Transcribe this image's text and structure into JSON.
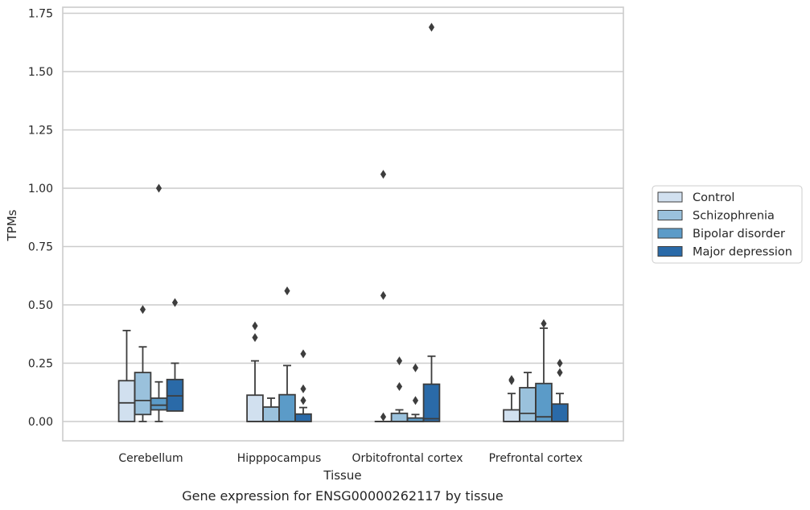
{
  "chart_data": {
    "type": "box",
    "title": "",
    "caption": "Gene expression for ENSG00000262117 by tissue",
    "xlabel": "Tissue",
    "ylabel": "TPMs",
    "ylim": [
      -0.08,
      1.78
    ],
    "yticks": [
      0.0,
      0.25,
      0.5,
      0.75,
      1.0,
      1.25,
      1.5,
      1.75
    ],
    "ytick_labels": [
      "0.00",
      "0.25",
      "0.50",
      "0.75",
      "1.00",
      "1.25",
      "1.50",
      "1.75"
    ],
    "grid": "horizontal",
    "legend_position": "right",
    "categories": [
      "Cerebellum",
      "Hipppocampus",
      "Orbitofrontal cortex",
      "Prefrontal cortex"
    ],
    "series": [
      {
        "name": "Control",
        "color": "#d1e0ef",
        "boxes": [
          {
            "min": 0.0,
            "q1": 0.0,
            "median": 0.08,
            "q3": 0.175,
            "max": 0.39,
            "outliers": []
          },
          {
            "min": 0.0,
            "q1": 0.0,
            "median": 0.0,
            "q3": 0.113,
            "max": 0.26,
            "outliers": [
              0.36,
              0.41
            ]
          },
          {
            "min": 0.0,
            "q1": 0.0,
            "median": 0.0,
            "q3": 0.0,
            "max": 0.0,
            "outliers": [
              0.02,
              0.54,
              1.06
            ]
          },
          {
            "min": 0.0,
            "q1": 0.0,
            "median": 0.0,
            "q3": 0.05,
            "max": 0.12,
            "outliers": [
              0.175,
              0.18
            ]
          }
        ]
      },
      {
        "name": "Schizophrenia",
        "color": "#9ac1dc",
        "boxes": [
          {
            "min": 0.0,
            "q1": 0.03,
            "median": 0.09,
            "q3": 0.21,
            "max": 0.32,
            "outliers": [
              0.48
            ]
          },
          {
            "min": 0.0,
            "q1": 0.0,
            "median": 0.0,
            "q3": 0.062,
            "max": 0.1,
            "outliers": []
          },
          {
            "min": 0.0,
            "q1": 0.0,
            "median": 0.0,
            "q3": 0.035,
            "max": 0.05,
            "outliers": [
              0.15,
              0.26
            ]
          },
          {
            "min": 0.0,
            "q1": 0.0,
            "median": 0.035,
            "q3": 0.145,
            "max": 0.21,
            "outliers": []
          }
        ]
      },
      {
        "name": "Bipolar disorder",
        "color": "#5b9bc8",
        "boxes": [
          {
            "min": 0.0,
            "q1": 0.05,
            "median": 0.07,
            "q3": 0.1,
            "max": 0.17,
            "outliers": [
              1.0
            ]
          },
          {
            "min": 0.0,
            "q1": 0.0,
            "median": 0.0,
            "q3": 0.115,
            "max": 0.24,
            "outliers": [
              0.56
            ]
          },
          {
            "min": 0.0,
            "q1": 0.0,
            "median": 0.0,
            "q3": 0.015,
            "max": 0.03,
            "outliers": [
              0.09,
              0.23
            ]
          },
          {
            "min": 0.0,
            "q1": 0.0,
            "median": 0.02,
            "q3": 0.163,
            "max": 0.4,
            "outliers": [
              0.42
            ]
          }
        ]
      },
      {
        "name": "Major depression",
        "color": "#2a6aa8",
        "boxes": [
          {
            "min": 0.045,
            "q1": 0.045,
            "median": 0.11,
            "q3": 0.18,
            "max": 0.25,
            "outliers": [
              0.51
            ]
          },
          {
            "min": 0.0,
            "q1": 0.0,
            "median": 0.0,
            "q3": 0.032,
            "max": 0.06,
            "outliers": [
              0.09,
              0.14,
              0.29
            ]
          },
          {
            "min": 0.0,
            "q1": 0.0,
            "median": 0.012,
            "q3": 0.16,
            "max": 0.28,
            "outliers": [
              1.69
            ]
          },
          {
            "min": 0.0,
            "q1": 0.0,
            "median": 0.0,
            "q3": 0.075,
            "max": 0.12,
            "outliers": [
              0.21,
              0.25
            ]
          }
        ]
      }
    ]
  }
}
